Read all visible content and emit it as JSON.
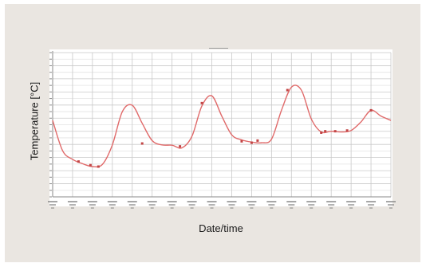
{
  "chart_data": {
    "type": "line",
    "xlabel": "Date/time",
    "ylabel": "Temperature [°C]",
    "grid": true,
    "legend": "none",
    "series": [
      {
        "color": "#e06a6a",
        "marker_color": "#c24545",
        "values": [
          [
            0.0,
            6.3
          ],
          [
            0.5,
            4.2
          ],
          [
            1.0,
            3.6
          ],
          [
            1.5,
            3.3
          ],
          [
            2.0,
            3.1
          ],
          [
            2.5,
            3.25
          ],
          [
            3.0,
            4.6
          ],
          [
            3.5,
            6.9
          ],
          [
            4.0,
            7.35
          ],
          [
            4.5,
            6.1
          ],
          [
            5.0,
            4.9
          ],
          [
            5.5,
            4.6
          ],
          [
            6.0,
            4.58
          ],
          [
            6.5,
            4.4
          ],
          [
            7.0,
            5.2
          ],
          [
            7.5,
            7.3
          ],
          [
            8.0,
            8.0
          ],
          [
            8.5,
            6.6
          ],
          [
            9.0,
            5.3
          ],
          [
            9.5,
            4.95
          ],
          [
            10.0,
            4.8
          ],
          [
            10.5,
            4.75
          ],
          [
            11.0,
            5.0
          ],
          [
            11.5,
            7.0
          ],
          [
            12.0,
            8.6
          ],
          [
            12.5,
            8.4
          ],
          [
            13.0,
            6.4
          ],
          [
            13.5,
            5.5
          ],
          [
            14.0,
            5.55
          ],
          [
            14.5,
            5.5
          ],
          [
            15.0,
            5.6
          ],
          [
            15.5,
            6.2
          ],
          [
            16.0,
            7.0
          ],
          [
            16.5,
            6.6
          ],
          [
            17.0,
            6.3
          ]
        ],
        "marked_points": [
          [
            1.3,
            3.45
          ],
          [
            1.9,
            3.2
          ],
          [
            2.3,
            3.1
          ],
          [
            4.5,
            4.7
          ],
          [
            6.4,
            4.5
          ],
          [
            7.5,
            7.5
          ],
          [
            9.5,
            4.85
          ],
          [
            10.0,
            4.75
          ],
          [
            10.3,
            4.9
          ],
          [
            11.8,
            8.4
          ],
          [
            13.5,
            5.45
          ],
          [
            13.7,
            5.55
          ],
          [
            14.2,
            5.55
          ],
          [
            14.8,
            5.6
          ],
          [
            16.0,
            7.0
          ]
        ]
      }
    ],
    "xlim": [
      0,
      17
    ],
    "ylim": [
      1,
      11
    ],
    "x_ticks": 17,
    "y_gridlines": 22
  },
  "colors": {
    "panel_bg": "#eae6e1",
    "plot_bg": "#ffffff",
    "grid_major": "#c9c9c9",
    "grid_minor": "#e3e3e3",
    "axis": "#8a8a8a",
    "tick_label": "#8a8a8a"
  }
}
